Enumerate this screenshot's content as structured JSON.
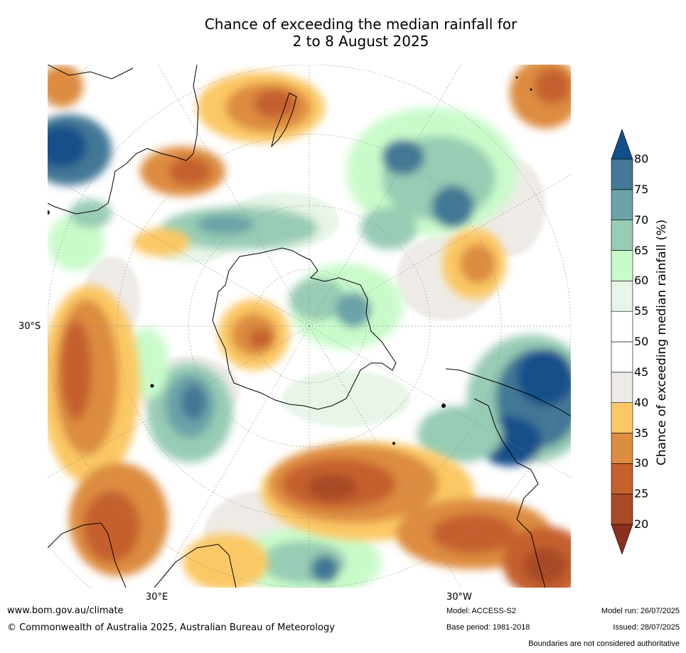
{
  "title": {
    "line1": "Chance of exceeding the median rainfall for",
    "line2": "2 to 8 August 2025"
  },
  "map": {
    "projection": "south-polar-stereographic",
    "graticule_labels": {
      "lat": "30°S",
      "lon_east": "30°E",
      "lon_west": "30°W"
    }
  },
  "colorbar": {
    "label": "Chance of exceeding median rainfall (%)",
    "ticks": [
      "20",
      "25",
      "30",
      "35",
      "40",
      "45",
      "50",
      "55",
      "60",
      "65",
      "70",
      "75",
      "80"
    ],
    "extend": "both",
    "colors": {
      "lt20": "#8c2f1c",
      "20_25": "#a84a26",
      "25_30": "#c5612d",
      "30_35": "#dd8c40",
      "35_40": "#fbc865",
      "40_45": "#eeebe6",
      "45_50": "#ffffff",
      "50_55": "#ffffff",
      "55_60": "#e8f5e8",
      "60_65": "#c9fbca",
      "65_70": "#98ccb4",
      "70_75": "#6aa3a8",
      "75_80": "#437896",
      "gt80": "#134f8a"
    }
  },
  "footer": {
    "website": "www.bom.gov.au/climate",
    "copyright": "© Commonwealth of Australia 2025, Australian Bureau of Meteorology",
    "model": "Model: ACCESS-S2",
    "base_period": "Base period: 1981-2018",
    "model_run": "Model run: 26/07/2025",
    "issued": "Issued: 28/07/2025",
    "disclaimer": "Boundaries are not considered authoritative"
  }
}
